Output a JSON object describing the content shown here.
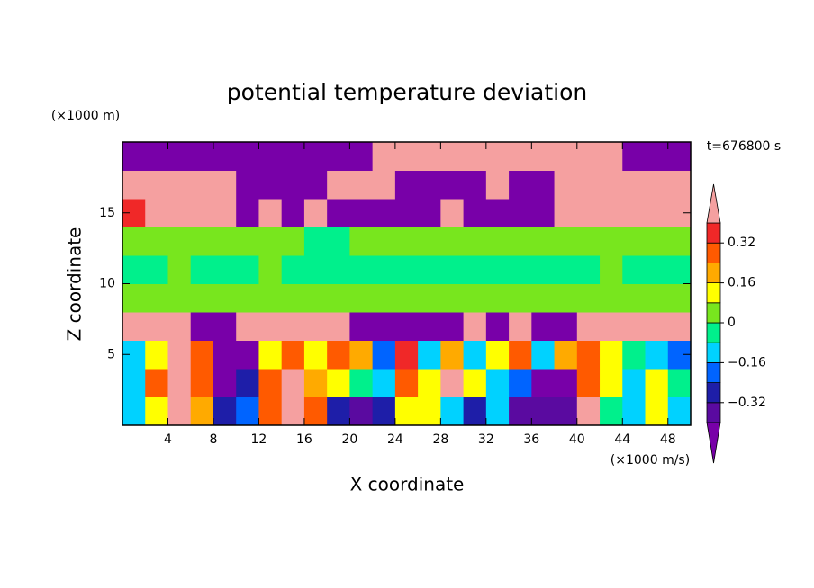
{
  "chart_data": {
    "type": "contour",
    "title": "potential temperature deviation",
    "xlabel": "X coordinate",
    "ylabel": "Z coordinate",
    "x_unit": "(×1000 m/s)",
    "y_unit": "(×1000 m)",
    "annotation": "t=676800 s",
    "x": [
      1,
      3,
      5,
      7,
      9,
      11,
      13,
      15,
      17,
      19,
      21,
      23,
      25,
      27,
      29,
      31,
      33,
      35,
      37,
      39,
      41,
      43,
      45,
      47,
      49
    ],
    "y": [
      1,
      3,
      5,
      7,
      9,
      11,
      13,
      15,
      17,
      19
    ],
    "z": [
      [
        -0.12,
        0.12,
        0.45,
        0.2,
        -0.28,
        -0.2,
        0.28,
        0.45,
        0.28,
        -0.28,
        -0.36,
        -0.28,
        0.12,
        0.12,
        -0.12,
        -0.28,
        -0.12,
        -0.36,
        -0.36,
        -0.36,
        0.45,
        -0.04,
        -0.12,
        0.12,
        -0.12
      ],
      [
        -0.12,
        0.28,
        0.45,
        0.28,
        -0.45,
        -0.28,
        0.28,
        0.45,
        0.2,
        0.12,
        -0.04,
        -0.12,
        0.28,
        0.12,
        0.45,
        0.12,
        -0.12,
        -0.2,
        -0.45,
        -0.45,
        0.28,
        0.12,
        -0.12,
        0.12,
        -0.04
      ],
      [
        -0.12,
        0.12,
        0.45,
        0.28,
        -0.45,
        -0.45,
        0.12,
        0.28,
        0.12,
        0.28,
        0.2,
        -0.2,
        0.36,
        -0.12,
        0.2,
        -0.12,
        0.12,
        0.28,
        -0.12,
        0.2,
        0.28,
        0.12,
        -0.04,
        -0.12,
        -0.2
      ],
      [
        0.45,
        0.45,
        0.45,
        -0.45,
        -0.45,
        0.45,
        0.45,
        0.45,
        0.45,
        0.45,
        -0.45,
        -0.45,
        -0.45,
        -0.45,
        -0.45,
        0.45,
        -0.45,
        0.45,
        -0.45,
        -0.45,
        0.45,
        0.45,
        0.45,
        0.45,
        0.45
      ],
      [
        0.04,
        0.04,
        0.04,
        0.04,
        0.04,
        0.04,
        0.04,
        0.04,
        0.04,
        0.04,
        0.04,
        0.04,
        0.04,
        0.04,
        0.04,
        0.04,
        0.04,
        0.04,
        0.04,
        0.04,
        0.04,
        0.04,
        0.04,
        0.04,
        0.04
      ],
      [
        -0.04,
        -0.04,
        0.04,
        -0.04,
        -0.04,
        -0.04,
        0.04,
        -0.04,
        -0.04,
        -0.04,
        -0.04,
        -0.04,
        -0.04,
        -0.04,
        -0.04,
        -0.04,
        -0.04,
        -0.04,
        -0.04,
        -0.04,
        -0.04,
        0.04,
        -0.04,
        -0.04,
        -0.04
      ],
      [
        0.04,
        0.04,
        0.04,
        0.04,
        0.04,
        0.04,
        0.04,
        0.04,
        -0.04,
        -0.04,
        0.04,
        0.04,
        0.04,
        0.04,
        0.04,
        0.04,
        0.04,
        0.04,
        0.04,
        0.04,
        0.04,
        0.04,
        0.04,
        0.04,
        0.04
      ],
      [
        0.36,
        0.45,
        0.45,
        0.45,
        0.45,
        -0.45,
        0.45,
        -0.45,
        0.45,
        -0.45,
        -0.45,
        -0.45,
        -0.45,
        -0.45,
        0.45,
        -0.45,
        -0.45,
        -0.45,
        -0.45,
        0.45,
        0.45,
        0.45,
        0.45,
        0.45,
        0.45
      ],
      [
        0.45,
        0.45,
        0.45,
        0.45,
        0.45,
        -0.45,
        -0.45,
        -0.45,
        -0.45,
        0.45,
        0.45,
        0.45,
        -0.45,
        -0.45,
        -0.45,
        -0.45,
        0.45,
        -0.45,
        -0.45,
        0.45,
        0.45,
        0.45,
        0.45,
        0.45,
        0.45
      ],
      [
        -0.45,
        -0.45,
        -0.45,
        -0.45,
        -0.45,
        -0.45,
        -0.45,
        -0.45,
        -0.45,
        -0.45,
        -0.45,
        0.45,
        0.45,
        0.45,
        0.45,
        0.45,
        0.45,
        0.45,
        0.45,
        0.45,
        0.45,
        0.45,
        -0.45,
        -0.45,
        -0.45
      ]
    ],
    "xlim": [
      0,
      50
    ],
    "ylim": [
      0,
      20
    ],
    "xticks": [
      4,
      8,
      12,
      16,
      20,
      24,
      28,
      32,
      36,
      40,
      44,
      48
    ],
    "yticks": [
      5,
      10,
      15
    ],
    "levels": [
      -0.4,
      -0.32,
      -0.24,
      -0.16,
      -0.08,
      0,
      0.08,
      0.16,
      0.24,
      0.32,
      0.4
    ],
    "colors": [
      "#7800a8",
      "#5a0aa0",
      "#1e1ea8",
      "#0064ff",
      "#00d2ff",
      "#00f08c",
      "#78e61e",
      "#ffff00",
      "#ffaa00",
      "#ff5a00",
      "#f02828",
      "#f5a0a0"
    ],
    "colorbar_ticks": [
      0.32,
      0.16,
      0,
      {
        "value": -0.16,
        "label": "−0.16"
      },
      {
        "value": -0.32,
        "label": "−0.32"
      }
    ],
    "extend": "both"
  }
}
